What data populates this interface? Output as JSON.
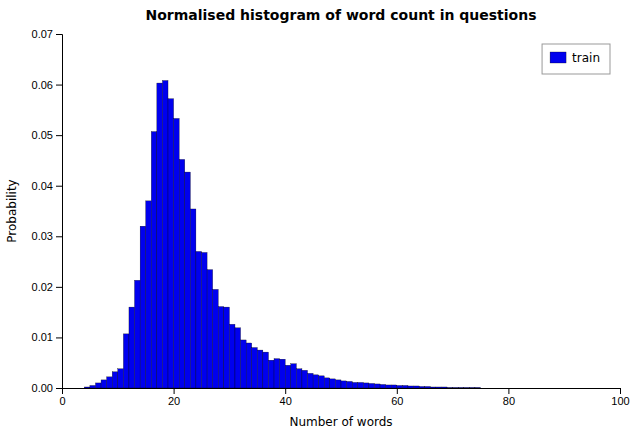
{
  "chart_data": {
    "type": "histogram",
    "title": "Normalised histogram of word count in questions",
    "x_label": "Number of words",
    "y_label": "Probability",
    "bins": [
      0,
      1,
      2,
      3,
      4,
      5,
      6,
      7,
      8,
      9,
      10,
      11,
      12,
      13,
      14,
      15,
      16,
      17,
      18,
      19,
      20,
      21,
      22,
      23,
      24,
      25,
      26,
      27,
      28,
      29,
      30,
      31,
      32,
      33,
      34,
      35,
      36,
      37,
      38,
      39,
      40,
      41,
      42,
      43,
      44,
      45,
      46,
      47,
      48,
      49,
      50,
      51,
      52,
      53,
      54,
      55,
      56,
      57,
      58,
      59,
      60,
      61,
      62,
      63,
      64,
      65,
      66,
      67,
      68,
      69,
      70,
      71,
      72,
      73,
      74,
      75,
      76,
      77,
      78,
      79,
      80,
      81,
      82,
      83,
      84,
      85,
      86,
      87,
      88,
      89,
      90,
      91,
      92,
      93,
      94,
      95,
      96,
      97,
      98,
      99,
      100
    ],
    "series": [
      {
        "name": "train",
        "color": "#0000EE",
        "values": [
          0.0,
          0.0,
          0.0,
          0.0,
          0.0002,
          0.0005,
          0.001,
          0.0016,
          0.0022,
          0.0032,
          0.0038,
          0.0107,
          0.016,
          0.0213,
          0.032,
          0.037,
          0.0507,
          0.0603,
          0.0608,
          0.0572,
          0.0533,
          0.0452,
          0.0427,
          0.0354,
          0.027,
          0.0268,
          0.0234,
          0.0195,
          0.0161,
          0.016,
          0.0126,
          0.0119,
          0.0095,
          0.0089,
          0.008,
          0.0075,
          0.0071,
          0.0055,
          0.0058,
          0.0057,
          0.0045,
          0.0048,
          0.0038,
          0.0035,
          0.0029,
          0.0026,
          0.0024,
          0.002,
          0.0018,
          0.0016,
          0.0014,
          0.0013,
          0.0011,
          0.0011,
          0.001,
          0.0009,
          0.0008,
          0.0007,
          0.0006,
          0.0006,
          0.0005,
          0.0005,
          0.0004,
          0.0004,
          0.0003,
          0.0003,
          0.0002,
          0.0002,
          0.0002,
          0.0001,
          0.0001,
          0.0001,
          0.0001,
          0.0001,
          0.0001,
          0.0,
          0.0,
          0.0,
          0.0,
          0.0,
          0.0,
          0.0,
          0.0,
          0.0,
          0.0,
          0.0,
          0.0,
          0.0,
          0.0,
          0.0,
          0.0,
          0.0,
          0.0,
          0.0,
          0.0,
          0.0,
          0.0,
          0.0,
          0.0,
          0.0
        ]
      }
    ],
    "xlim": [
      0,
      100
    ],
    "ylim": [
      0,
      0.07
    ],
    "xticks": [
      0,
      20,
      40,
      60,
      80,
      100
    ],
    "yticks": [
      {
        "value": 0.0,
        "label": "0.00"
      },
      {
        "value": 0.01,
        "label": "0.01"
      },
      {
        "value": 0.02,
        "label": "0.02"
      },
      {
        "value": 0.03,
        "label": "0.03"
      },
      {
        "value": 0.04,
        "label": "0.04"
      },
      {
        "value": 0.05,
        "label": "0.05"
      },
      {
        "value": 0.06,
        "label": "0.06"
      },
      {
        "value": 0.07,
        "label": "0.07"
      }
    ],
    "legend": "upper right",
    "grid": false
  }
}
